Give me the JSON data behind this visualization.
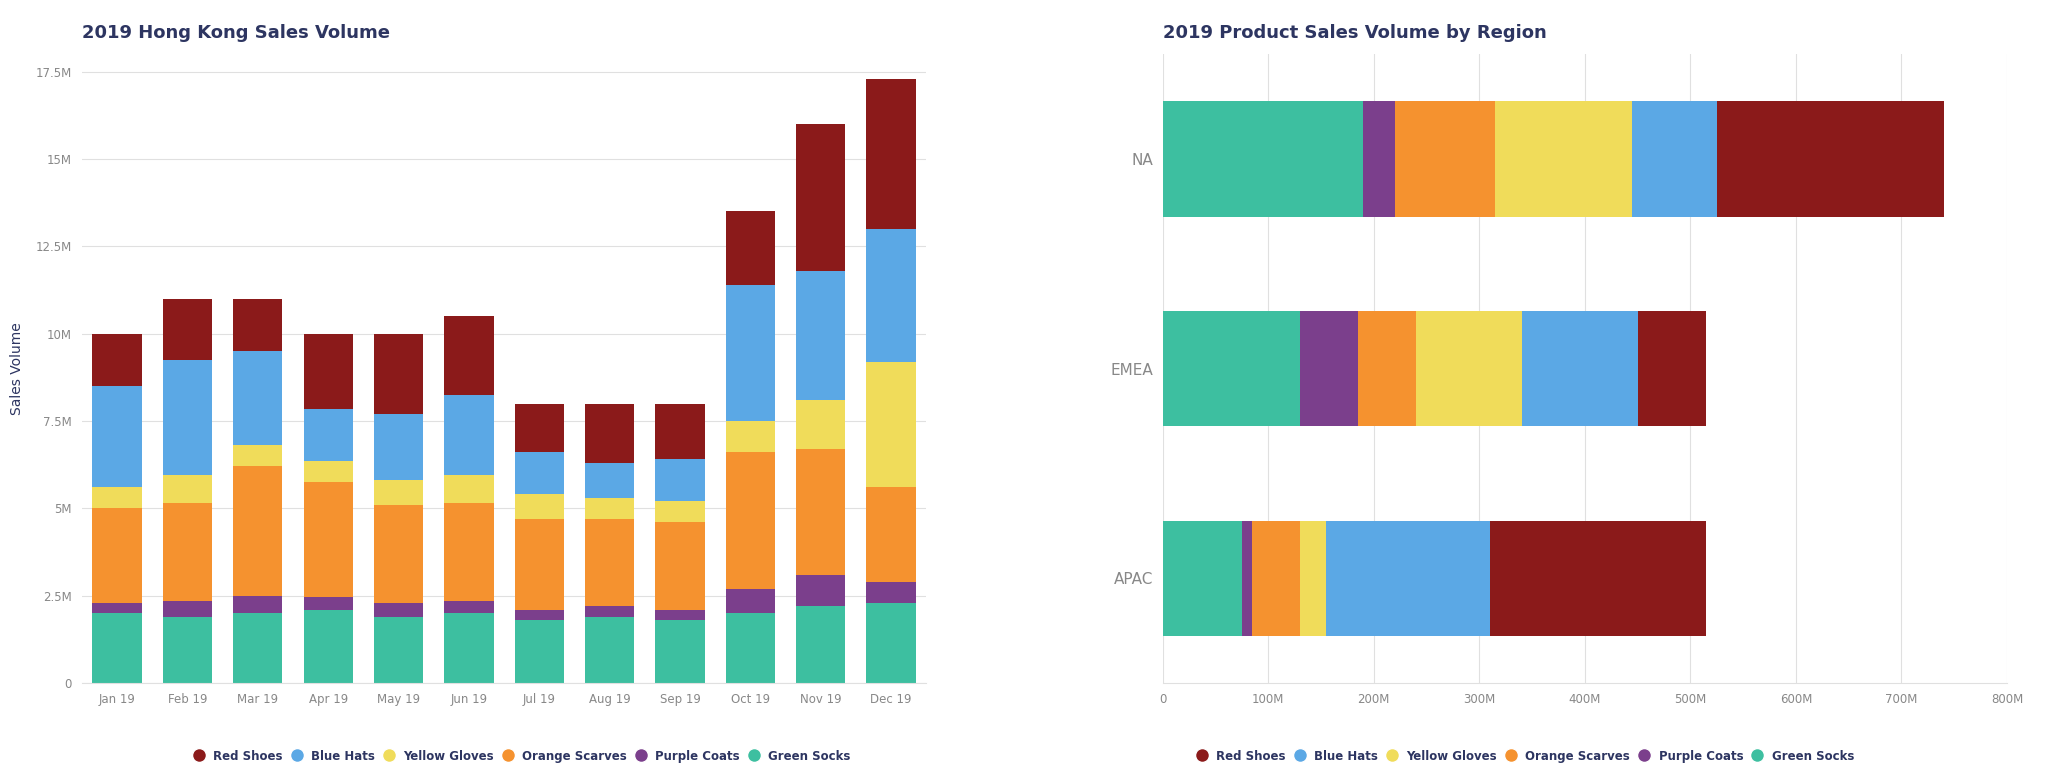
{
  "left_title": "2019 Hong Kong Sales Volume",
  "right_title": "2019 Product Sales Volume by Region",
  "left_ylabel": "Sales Volume",
  "months": [
    "Jan 19",
    "Feb 19",
    "Mar 19",
    "Apr 19",
    "May 19",
    "Jun 19",
    "Jul 19",
    "Aug 19",
    "Sep 19",
    "Oct 19",
    "Nov 19",
    "Dec 19"
  ],
  "stack_order": [
    "Green Socks",
    "Purple Coats",
    "Orange Scarves",
    "Yellow Gloves",
    "Blue Hats",
    "Red Shoes"
  ],
  "legend_order": [
    "Red Shoes",
    "Blue Hats",
    "Yellow Gloves",
    "Orange Scarves",
    "Purple Coats",
    "Green Socks"
  ],
  "colors": {
    "Green Socks": "#3DBFA0",
    "Purple Coats": "#7B3F8C",
    "Orange Scarves": "#F5922F",
    "Yellow Gloves": "#F0DC5A",
    "Blue Hats": "#5BA8E5",
    "Red Shoes": "#8B1A1A"
  },
  "left_data": {
    "Green Socks": [
      2000000,
      1900000,
      2000000,
      2100000,
      1900000,
      2000000,
      1800000,
      1900000,
      1800000,
      2000000,
      2200000,
      2300000
    ],
    "Purple Coats": [
      300000,
      450000,
      500000,
      350000,
      400000,
      350000,
      300000,
      300000,
      300000,
      700000,
      900000,
      600000
    ],
    "Orange Scarves": [
      2700000,
      2800000,
      3700000,
      3300000,
      2800000,
      2800000,
      2600000,
      2500000,
      2500000,
      3900000,
      3600000,
      2700000
    ],
    "Yellow Gloves": [
      600000,
      800000,
      600000,
      600000,
      700000,
      800000,
      700000,
      600000,
      600000,
      900000,
      1400000,
      3600000
    ],
    "Blue Hats": [
      2900000,
      3300000,
      2700000,
      1500000,
      1900000,
      2300000,
      1200000,
      1000000,
      1200000,
      3900000,
      3700000,
      3800000
    ],
    "Red Shoes": [
      1500000,
      1750000,
      1500000,
      2150000,
      2300000,
      2250000,
      1400000,
      1700000,
      1600000,
      2100000,
      4200000,
      4300000
    ]
  },
  "left_ylim": [
    0,
    18000000
  ],
  "left_yticks": [
    0,
    2500000,
    5000000,
    7500000,
    10000000,
    12500000,
    15000000,
    17500000
  ],
  "regions": [
    "NA",
    "EMEA",
    "APAC"
  ],
  "right_stack_order": [
    "Green Socks",
    "Purple Coats",
    "Orange Scarves",
    "Yellow Gloves",
    "Blue Hats",
    "Red Shoes"
  ],
  "right_data": {
    "Green Socks": [
      190000000,
      130000000,
      75000000
    ],
    "Purple Coats": [
      30000000,
      55000000,
      10000000
    ],
    "Orange Scarves": [
      95000000,
      55000000,
      45000000
    ],
    "Yellow Gloves": [
      130000000,
      100000000,
      25000000
    ],
    "Blue Hats": [
      80000000,
      110000000,
      155000000
    ],
    "Red Shoes": [
      215000000,
      65000000,
      205000000
    ]
  },
  "right_xlim": [
    0,
    800000000
  ],
  "right_xticks": [
    0,
    100000000,
    200000000,
    300000000,
    400000000,
    500000000,
    600000000,
    700000000,
    800000000
  ],
  "background_color": "#FFFFFF",
  "panel_color": "#FFFFFF",
  "title_color": "#2D3561",
  "label_color": "#2D3561",
  "tick_color": "#888888",
  "grid_color": "#E0E0E0"
}
